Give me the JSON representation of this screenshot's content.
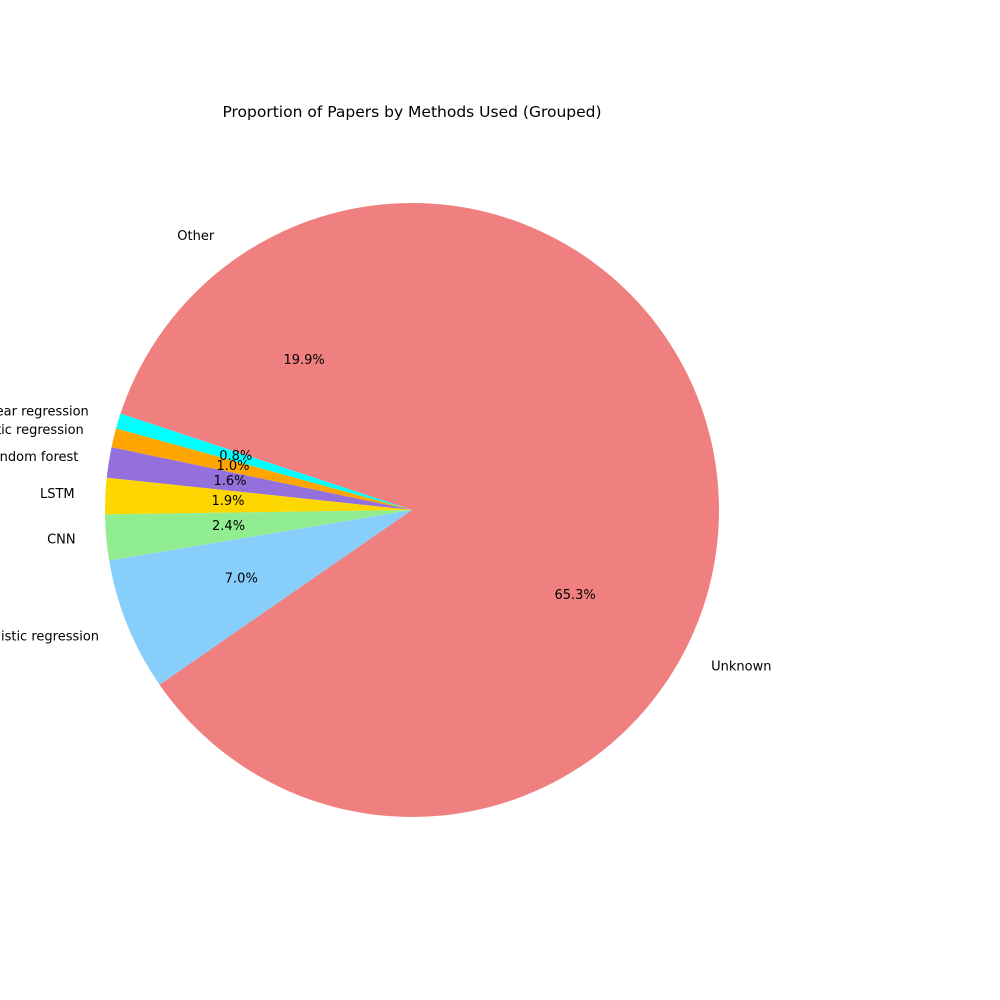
{
  "chart_data": {
    "type": "pie",
    "title": "Proportion of Papers by Methods Used (Grouped)",
    "start_angle_deg": 90,
    "direction": "counterclockwise",
    "slices": [
      {
        "label": "Other",
        "value": 19.9,
        "pct_text": "19.9%",
        "color": "#f08080"
      },
      {
        "label": "linear regression",
        "value": 0.8,
        "pct_text": "0.8%",
        "color": "#00ffff"
      },
      {
        "label": "random forest, logistic regression",
        "value": 1.0,
        "pct_text": "1.0%",
        "color": "#ffa500"
      },
      {
        "label": "random forest",
        "value": 1.6,
        "pct_text": "1.6%",
        "color": "#9370db"
      },
      {
        "label": "LSTM",
        "value": 1.9,
        "pct_text": "1.9%",
        "color": "#ffd700"
      },
      {
        "label": "CNN",
        "value": 2.4,
        "pct_text": "2.4%",
        "color": "#90ee90"
      },
      {
        "label": "logistic regression",
        "value": 7.0,
        "pct_text": "7.0%",
        "color": "#87cefa"
      },
      {
        "label": "Unknown",
        "value": 65.3,
        "pct_text": "65.3%",
        "color": "#f08080"
      }
    ]
  }
}
